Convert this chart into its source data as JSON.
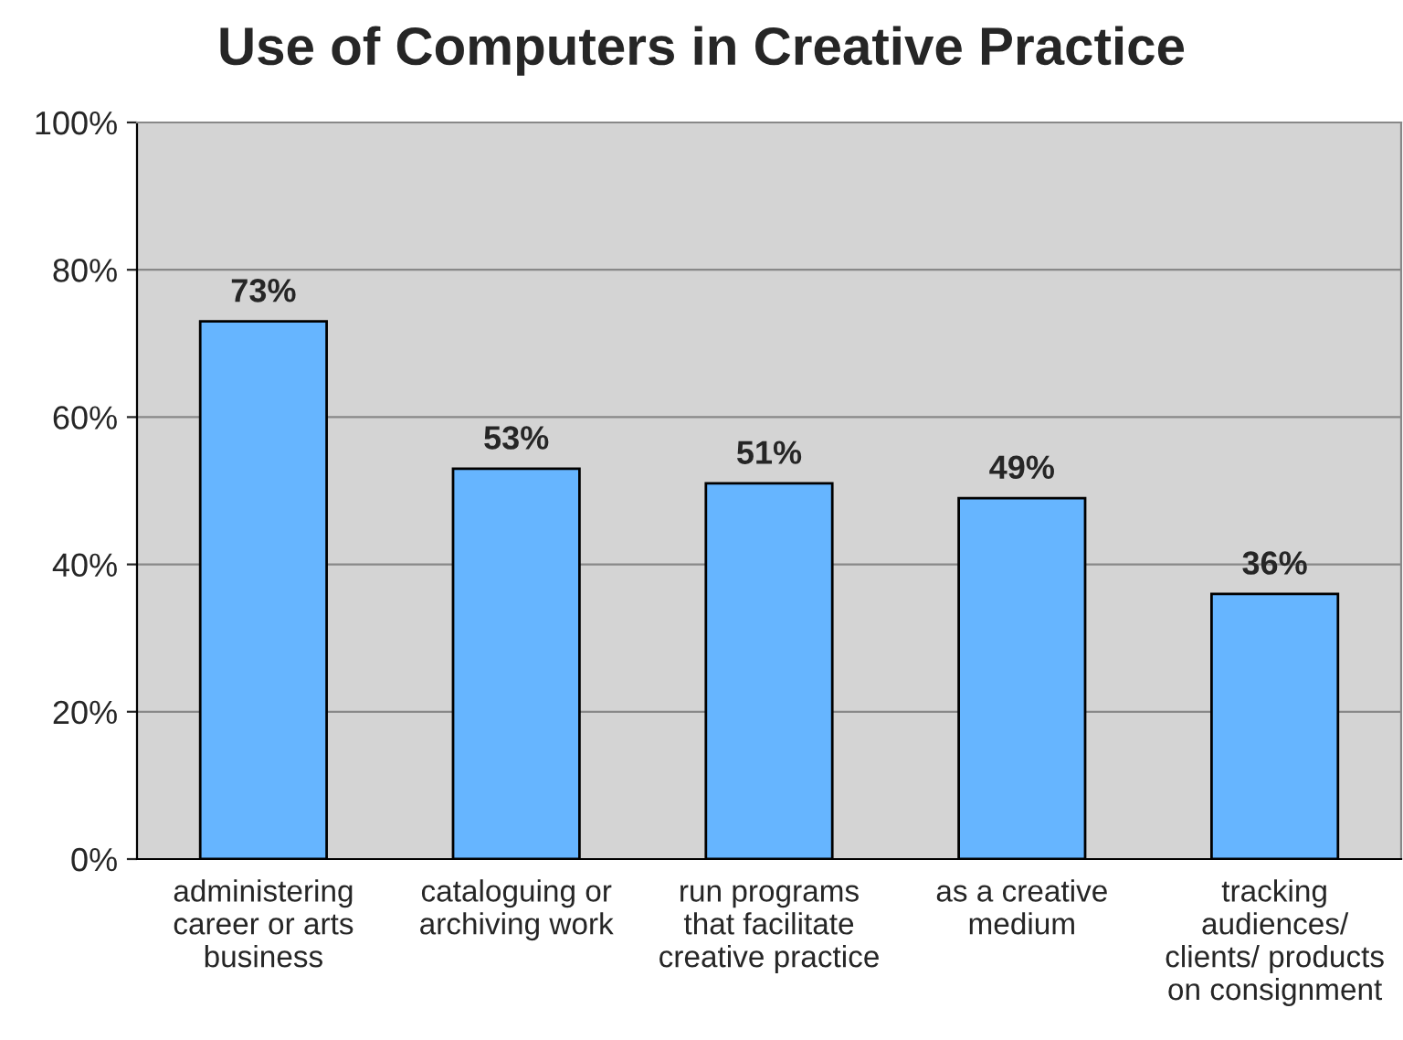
{
  "chart_data": {
    "type": "bar",
    "title": "Use of Computers in Creative Practice",
    "categories": [
      "administering\ncareer or arts\nbusiness",
      "cataloguing or\narchiving work",
      "run programs\nthat facilitate\ncreative practice",
      "as a creative\nmedium",
      "tracking\naudiences/\nclients/ products\non consignment"
    ],
    "values": [
      73,
      53,
      51,
      49,
      36
    ],
    "value_labels": [
      "73%",
      "53%",
      "51%",
      "49%",
      "36%"
    ],
    "color": "#66b5ff",
    "ylim": [
      0,
      100
    ],
    "yticks": [
      {
        "value": 0,
        "label": "0%"
      },
      {
        "value": 20,
        "label": "20%"
      },
      {
        "value": 40,
        "label": "40%"
      },
      {
        "value": 60,
        "label": "60%"
      },
      {
        "value": 80,
        "label": "80%"
      },
      {
        "value": 100,
        "label": "100%"
      }
    ],
    "grid": "y"
  }
}
